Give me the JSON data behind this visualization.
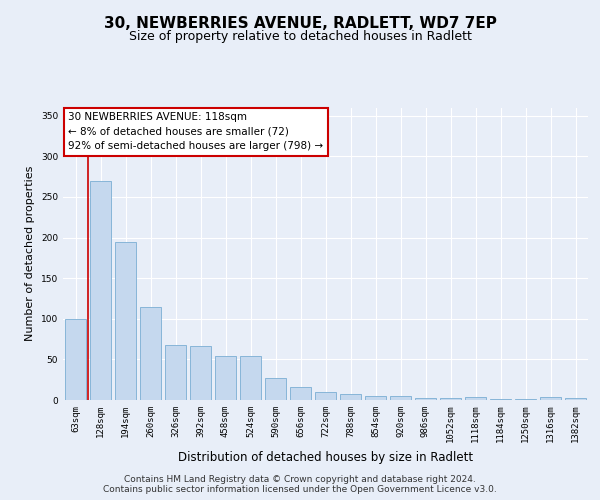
{
  "title": "30, NEWBERRIES AVENUE, RADLETT, WD7 7EP",
  "subtitle": "Size of property relative to detached houses in Radlett",
  "xlabel": "Distribution of detached houses by size in Radlett",
  "ylabel": "Number of detached properties",
  "categories": [
    "63sqm",
    "128sqm",
    "194sqm",
    "260sqm",
    "326sqm",
    "392sqm",
    "458sqm",
    "524sqm",
    "590sqm",
    "656sqm",
    "722sqm",
    "788sqm",
    "854sqm",
    "920sqm",
    "986sqm",
    "1052sqm",
    "1118sqm",
    "1184sqm",
    "1250sqm",
    "1316sqm",
    "1382sqm"
  ],
  "values": [
    100,
    270,
    195,
    115,
    68,
    67,
    54,
    54,
    27,
    16,
    10,
    8,
    5,
    5,
    3,
    3,
    4,
    1,
    1,
    4,
    3
  ],
  "bar_color": "#c5d8ee",
  "bar_edge_color": "#7aaed4",
  "vline_color": "#cc0000",
  "vline_bar_index": 1,
  "ylim": [
    0,
    360
  ],
  "yticks": [
    0,
    50,
    100,
    150,
    200,
    250,
    300,
    350
  ],
  "bg_color": "#e8eef8",
  "plot_bg_color": "#e8eef8",
  "grid_color": "#ffffff",
  "annotation_text": "30 NEWBERRIES AVENUE: 118sqm\n← 8% of detached houses are smaller (72)\n92% of semi-detached houses are larger (798) →",
  "annotation_box_facecolor": "#ffffff",
  "annotation_box_edgecolor": "#cc0000",
  "footer_text": "Contains HM Land Registry data © Crown copyright and database right 2024.\nContains public sector information licensed under the Open Government Licence v3.0.",
  "title_fontsize": 11,
  "subtitle_fontsize": 9,
  "xlabel_fontsize": 8.5,
  "ylabel_fontsize": 8,
  "tick_fontsize": 6.5,
  "annotation_fontsize": 7.5,
  "footer_fontsize": 6.5
}
